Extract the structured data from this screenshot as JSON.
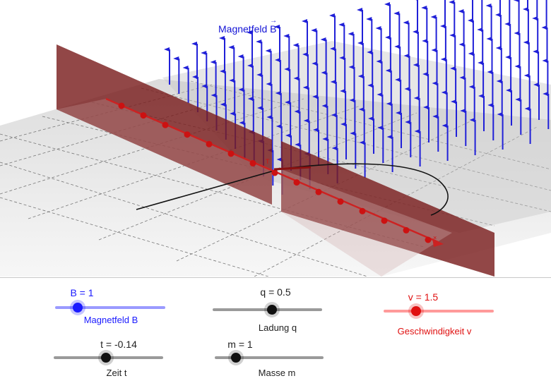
{
  "scene": {
    "title": "Magnetfeld",
    "title_vector": "B",
    "colors": {
      "field_arrow": "#2020d8",
      "plate": "#7a1f1f",
      "track": "#cc2222",
      "grid": "#777777"
    }
  },
  "sliders": [
    {
      "id": "b",
      "value_label": "B = 1",
      "caption": "Magnetfeld B",
      "color": "#1a1aff",
      "track_color": "#9a9aff",
      "knob_color": "#1a1aff",
      "fraction": 0.2
    },
    {
      "id": "q",
      "value_label": "q = 0.5",
      "caption": "Ladung q",
      "color": "#222222",
      "track_color": "#9a9a9a",
      "knob_color": "#111111",
      "fraction": 0.55
    },
    {
      "id": "v",
      "value_label": "v = 1.5",
      "caption": "Geschwindigkeit v",
      "color": "#e01010",
      "track_color": "#ff9a9a",
      "knob_color": "#e01010",
      "fraction": 0.3
    },
    {
      "id": "t",
      "value_label": "t = -0.14",
      "caption": "Zeit t",
      "color": "#222222",
      "track_color": "#9a9a9a",
      "knob_color": "#111111",
      "fraction": 0.48
    },
    {
      "id": "m",
      "value_label": "m = 1",
      "caption": "Masse m",
      "color": "#222222",
      "track_color": "#9a9a9a",
      "knob_color": "#111111",
      "fraction": 0.2
    }
  ]
}
